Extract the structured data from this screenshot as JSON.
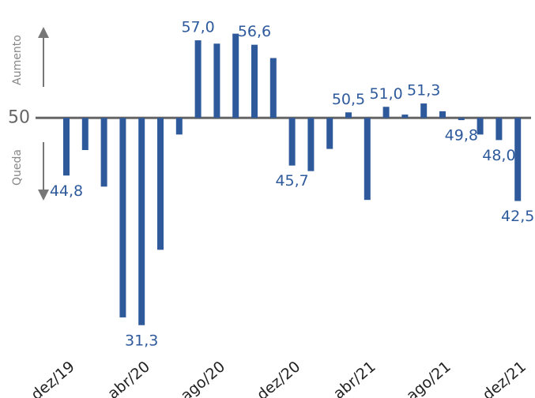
{
  "chart_data": {
    "type": "bar",
    "categories": [
      "dez/19",
      null,
      null,
      null,
      "abr/20",
      null,
      null,
      null,
      "ago/20",
      null,
      null,
      null,
      "dez/20",
      null,
      null,
      null,
      "abr/21",
      null,
      null,
      null,
      "ago/21",
      null,
      null,
      null,
      "dez/21"
    ],
    "values": [
      44.8,
      47.1,
      43.8,
      32.0,
      31.3,
      38.1,
      48.5,
      57.0,
      56.7,
      57.6,
      56.6,
      55.4,
      45.7,
      45.2,
      47.2,
      50.5,
      42.6,
      51.0,
      50.3,
      51.3,
      50.6,
      49.8,
      48.5,
      48.0,
      42.5
    ],
    "value_labels": [
      "44,8",
      null,
      null,
      null,
      "31,3",
      null,
      null,
      "57,0",
      null,
      null,
      "56,6",
      null,
      "45,7",
      null,
      null,
      "50,5",
      null,
      "51,0",
      null,
      "51,3",
      null,
      "49,8",
      null,
      "48,0",
      "42,5"
    ],
    "color": "#2e5a9c",
    "ylim": [
      30,
      58.5
    ],
    "yticks": [
      50
    ],
    "axis_annotations": [
      "Aumento",
      "Queda"
    ]
  }
}
